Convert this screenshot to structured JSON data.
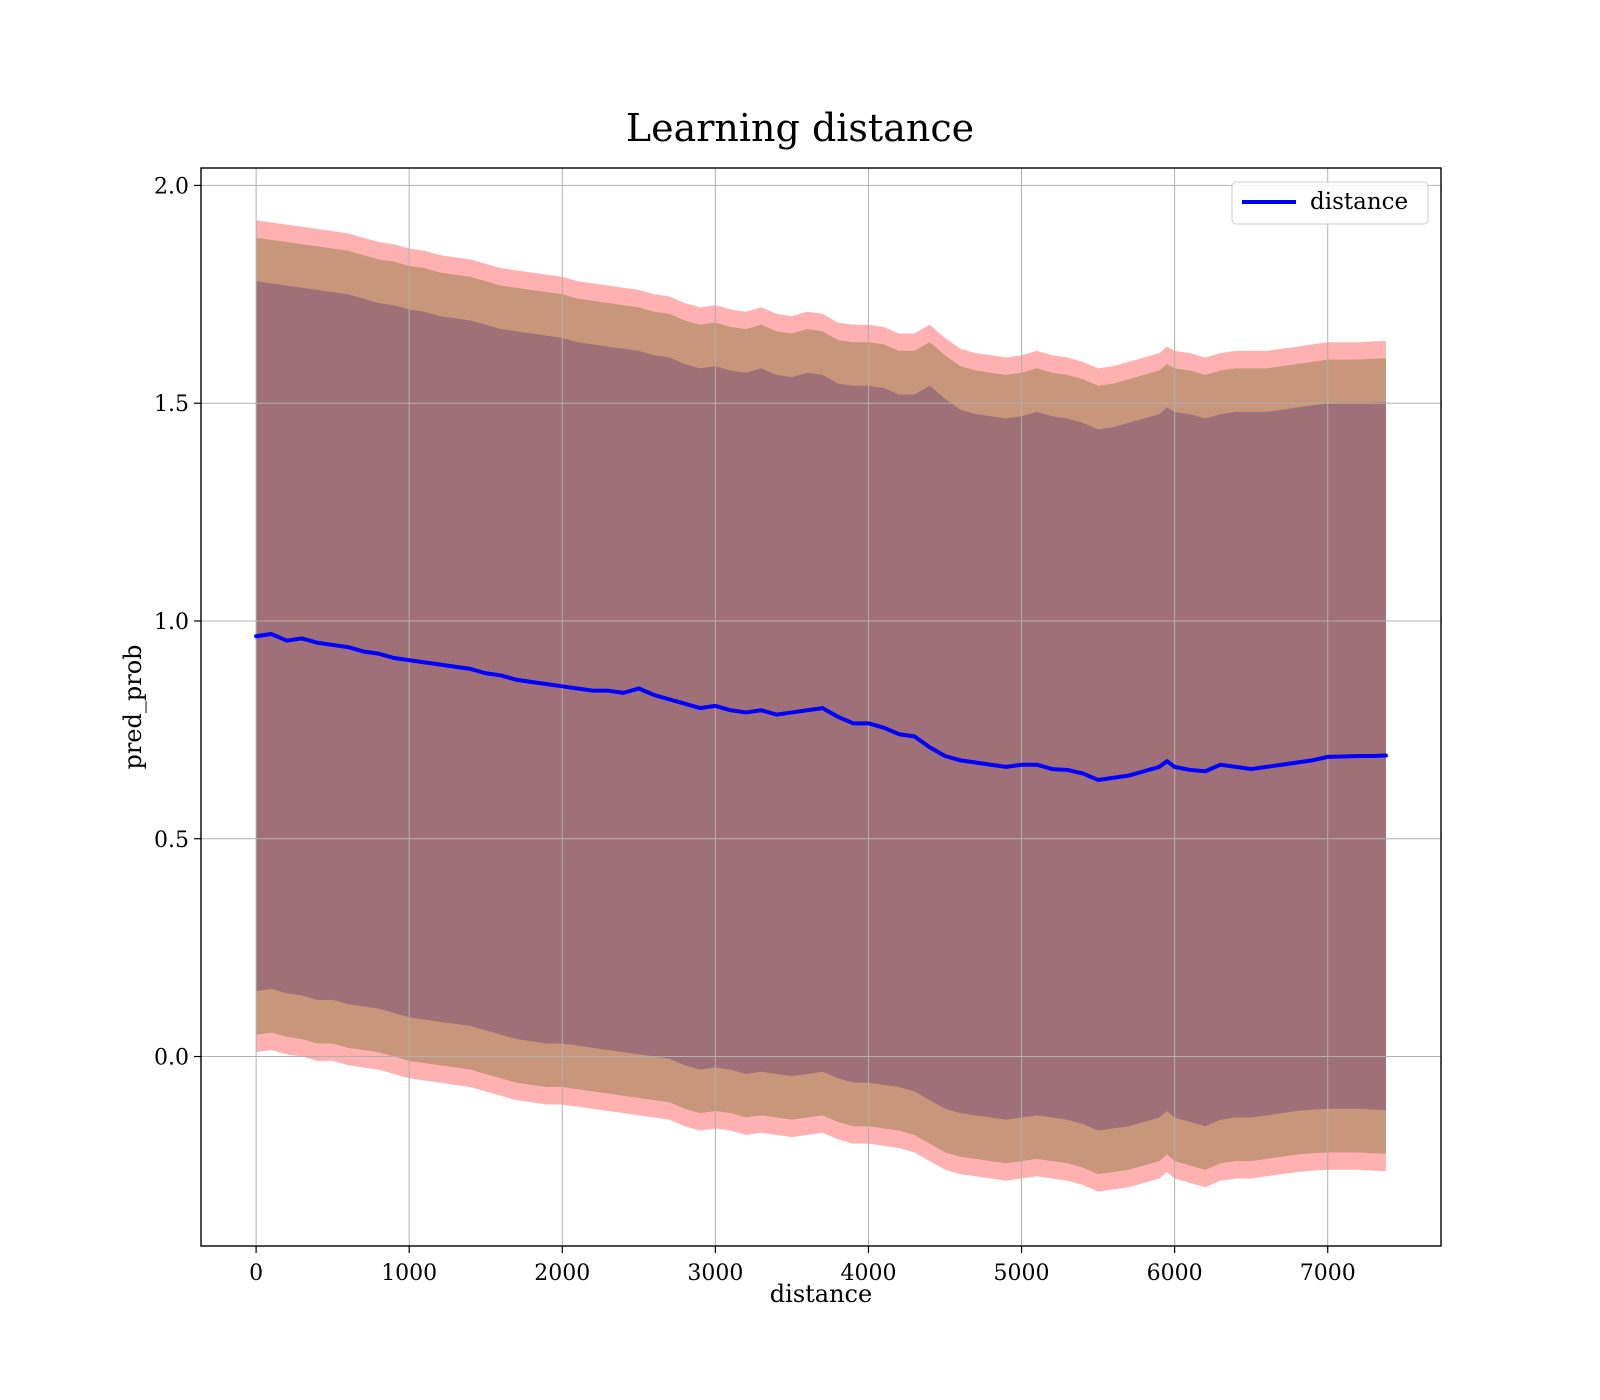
{
  "chart_data": {
    "type": "area",
    "title": "Learning distance",
    "xlabel": "distance",
    "ylabel": "pred_prob",
    "xlim": [
      -360,
      7740
    ],
    "ylim": [
      -0.435,
      2.04
    ],
    "x_ticks": [
      0,
      1000,
      2000,
      3000,
      4000,
      5000,
      6000,
      7000
    ],
    "y_ticks": [
      0.0,
      0.5,
      1.0,
      1.5,
      2.0
    ],
    "x_tick_labels": [
      "0",
      "1000",
      "2000",
      "3000",
      "4000",
      "5000",
      "6000",
      "7000"
    ],
    "y_tick_labels": [
      "0.0",
      "0.5",
      "1.0",
      "1.5",
      "2.0"
    ],
    "grid": true,
    "legend_position": "top-right",
    "colors": {
      "line": "#0000ff",
      "outer_band": "#ffb0b0",
      "middle_band": "#c8967a",
      "inner_band": "#a07078",
      "grid": "#b0b0b0"
    },
    "x": [
      0,
      100,
      200,
      300,
      400,
      500,
      600,
      700,
      800,
      900,
      1000,
      1100,
      1200,
      1300,
      1400,
      1500,
      1600,
      1700,
      1800,
      1900,
      2000,
      2100,
      2200,
      2300,
      2400,
      2500,
      2600,
      2700,
      2800,
      2900,
      3000,
      3100,
      3200,
      3300,
      3400,
      3500,
      3600,
      3700,
      3800,
      3900,
      4000,
      4100,
      4200,
      4300,
      4400,
      4500,
      4600,
      4700,
      4800,
      4900,
      5000,
      5100,
      5200,
      5300,
      5400,
      5500,
      5600,
      5700,
      5800,
      5900,
      5950,
      6000,
      6100,
      6200,
      6300,
      6400,
      6500,
      6600,
      6700,
      6800,
      6900,
      7000,
      7100,
      7200,
      7300,
      7380
    ],
    "series": [
      {
        "name": "distance",
        "values": [
          0.965,
          0.97,
          0.955,
          0.96,
          0.95,
          0.945,
          0.94,
          0.93,
          0.925,
          0.915,
          0.91,
          0.905,
          0.9,
          0.895,
          0.89,
          0.88,
          0.875,
          0.865,
          0.86,
          0.855,
          0.85,
          0.845,
          0.84,
          0.84,
          0.835,
          0.845,
          0.83,
          0.82,
          0.81,
          0.8,
          0.805,
          0.795,
          0.79,
          0.795,
          0.785,
          0.79,
          0.795,
          0.8,
          0.78,
          0.765,
          0.765,
          0.755,
          0.74,
          0.735,
          0.71,
          0.69,
          0.68,
          0.675,
          0.67,
          0.665,
          0.67,
          0.67,
          0.66,
          0.658,
          0.65,
          0.635,
          0.64,
          0.645,
          0.655,
          0.665,
          0.678,
          0.665,
          0.658,
          0.655,
          0.67,
          0.665,
          0.66,
          0.665,
          0.67,
          0.675,
          0.68,
          0.688,
          0.689,
          0.69,
          0.69,
          0.691
        ]
      }
    ],
    "bands": [
      {
        "upper": [
          1.92,
          1.915,
          1.91,
          1.905,
          1.9,
          1.895,
          1.89,
          1.88,
          1.87,
          1.865,
          1.855,
          1.85,
          1.84,
          1.835,
          1.83,
          1.82,
          1.81,
          1.805,
          1.8,
          1.795,
          1.79,
          1.78,
          1.775,
          1.77,
          1.765,
          1.76,
          1.75,
          1.745,
          1.73,
          1.72,
          1.725,
          1.715,
          1.71,
          1.72,
          1.705,
          1.7,
          1.71,
          1.705,
          1.685,
          1.68,
          1.68,
          1.675,
          1.66,
          1.66,
          1.68,
          1.65,
          1.625,
          1.615,
          1.61,
          1.605,
          1.61,
          1.62,
          1.61,
          1.605,
          1.595,
          1.58,
          1.585,
          1.595,
          1.605,
          1.615,
          1.63,
          1.62,
          1.615,
          1.605,
          1.615,
          1.62,
          1.62,
          1.62,
          1.625,
          1.63,
          1.635,
          1.64,
          1.64,
          1.64,
          1.642,
          1.643
        ],
        "lower": [
          0.01,
          0.015,
          0.005,
          0.0,
          -0.01,
          -0.01,
          -0.02,
          -0.025,
          -0.03,
          -0.04,
          -0.05,
          -0.055,
          -0.06,
          -0.065,
          -0.07,
          -0.08,
          -0.09,
          -0.1,
          -0.105,
          -0.11,
          -0.11,
          -0.115,
          -0.12,
          -0.125,
          -0.13,
          -0.135,
          -0.14,
          -0.145,
          -0.16,
          -0.17,
          -0.165,
          -0.17,
          -0.18,
          -0.175,
          -0.18,
          -0.185,
          -0.18,
          -0.175,
          -0.19,
          -0.2,
          -0.2,
          -0.205,
          -0.21,
          -0.22,
          -0.24,
          -0.26,
          -0.27,
          -0.275,
          -0.28,
          -0.285,
          -0.28,
          -0.275,
          -0.28,
          -0.285,
          -0.295,
          -0.31,
          -0.305,
          -0.3,
          -0.29,
          -0.28,
          -0.265,
          -0.28,
          -0.29,
          -0.3,
          -0.285,
          -0.28,
          -0.28,
          -0.275,
          -0.27,
          -0.265,
          -0.262,
          -0.26,
          -0.26,
          -0.26,
          -0.262,
          -0.263
        ]
      },
      {
        "upper": [
          1.88,
          1.875,
          1.87,
          1.865,
          1.86,
          1.855,
          1.85,
          1.84,
          1.83,
          1.825,
          1.815,
          1.81,
          1.8,
          1.795,
          1.79,
          1.78,
          1.77,
          1.765,
          1.76,
          1.755,
          1.75,
          1.74,
          1.735,
          1.73,
          1.725,
          1.72,
          1.71,
          1.705,
          1.69,
          1.68,
          1.685,
          1.675,
          1.67,
          1.68,
          1.665,
          1.66,
          1.67,
          1.665,
          1.645,
          1.64,
          1.64,
          1.635,
          1.62,
          1.62,
          1.64,
          1.61,
          1.585,
          1.575,
          1.57,
          1.565,
          1.57,
          1.58,
          1.57,
          1.565,
          1.555,
          1.54,
          1.545,
          1.555,
          1.565,
          1.575,
          1.59,
          1.58,
          1.575,
          1.565,
          1.575,
          1.58,
          1.58,
          1.58,
          1.585,
          1.59,
          1.595,
          1.6,
          1.6,
          1.6,
          1.602,
          1.603
        ],
        "lower": [
          0.05,
          0.055,
          0.045,
          0.04,
          0.03,
          0.03,
          0.02,
          0.015,
          0.01,
          0.0,
          -0.01,
          -0.015,
          -0.02,
          -0.025,
          -0.03,
          -0.04,
          -0.05,
          -0.06,
          -0.065,
          -0.07,
          -0.07,
          -0.075,
          -0.08,
          -0.085,
          -0.09,
          -0.095,
          -0.1,
          -0.105,
          -0.12,
          -0.13,
          -0.125,
          -0.13,
          -0.14,
          -0.135,
          -0.14,
          -0.145,
          -0.14,
          -0.135,
          -0.15,
          -0.16,
          -0.16,
          -0.165,
          -0.17,
          -0.18,
          -0.2,
          -0.22,
          -0.23,
          -0.235,
          -0.24,
          -0.245,
          -0.24,
          -0.235,
          -0.24,
          -0.245,
          -0.255,
          -0.27,
          -0.265,
          -0.26,
          -0.25,
          -0.24,
          -0.225,
          -0.24,
          -0.25,
          -0.26,
          -0.245,
          -0.24,
          -0.24,
          -0.235,
          -0.23,
          -0.225,
          -0.222,
          -0.22,
          -0.22,
          -0.22,
          -0.222,
          -0.223
        ]
      },
      {
        "upper": [
          1.78,
          1.775,
          1.77,
          1.765,
          1.76,
          1.755,
          1.75,
          1.74,
          1.73,
          1.725,
          1.715,
          1.71,
          1.7,
          1.695,
          1.69,
          1.68,
          1.67,
          1.665,
          1.66,
          1.655,
          1.65,
          1.64,
          1.635,
          1.63,
          1.625,
          1.62,
          1.61,
          1.605,
          1.59,
          1.58,
          1.585,
          1.575,
          1.57,
          1.58,
          1.565,
          1.56,
          1.57,
          1.565,
          1.545,
          1.54,
          1.54,
          1.535,
          1.52,
          1.52,
          1.54,
          1.51,
          1.485,
          1.475,
          1.47,
          1.465,
          1.47,
          1.48,
          1.47,
          1.465,
          1.455,
          1.44,
          1.445,
          1.455,
          1.465,
          1.475,
          1.49,
          1.48,
          1.475,
          1.465,
          1.475,
          1.48,
          1.48,
          1.48,
          1.485,
          1.49,
          1.495,
          1.5,
          1.5,
          1.5,
          1.502,
          1.503
        ],
        "lower": [
          0.15,
          0.155,
          0.145,
          0.14,
          0.13,
          0.13,
          0.12,
          0.115,
          0.11,
          0.1,
          0.09,
          0.085,
          0.08,
          0.075,
          0.07,
          0.06,
          0.05,
          0.04,
          0.035,
          0.03,
          0.03,
          0.025,
          0.02,
          0.015,
          0.01,
          0.005,
          0.0,
          -0.005,
          -0.02,
          -0.03,
          -0.025,
          -0.03,
          -0.04,
          -0.035,
          -0.04,
          -0.045,
          -0.04,
          -0.035,
          -0.05,
          -0.06,
          -0.06,
          -0.065,
          -0.07,
          -0.08,
          -0.1,
          -0.12,
          -0.13,
          -0.135,
          -0.14,
          -0.145,
          -0.14,
          -0.135,
          -0.14,
          -0.145,
          -0.155,
          -0.17,
          -0.165,
          -0.16,
          -0.15,
          -0.14,
          -0.125,
          -0.14,
          -0.15,
          -0.16,
          -0.145,
          -0.14,
          -0.14,
          -0.135,
          -0.13,
          -0.125,
          -0.122,
          -0.12,
          -0.12,
          -0.12,
          -0.122,
          -0.123
        ]
      }
    ]
  }
}
